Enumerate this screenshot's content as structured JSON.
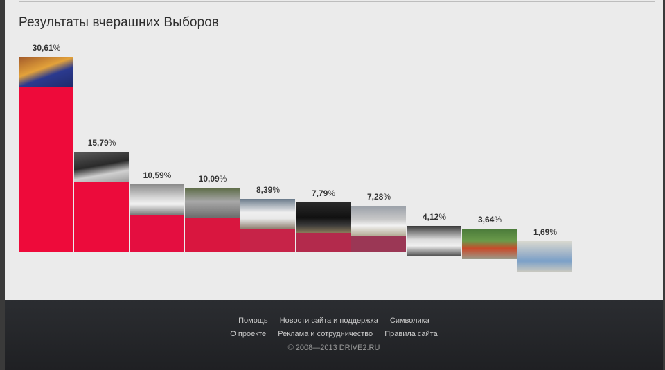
{
  "page": {
    "title": "Результаты вчерашних Выборов"
  },
  "chart_data": {
    "type": "bar",
    "title": "Результаты вчерашних Выборов",
    "categories": [
      "",
      "",
      "",
      "",
      "",
      "",
      "",
      "",
      "",
      ""
    ],
    "values": [
      30.61,
      15.79,
      10.59,
      10.09,
      8.39,
      7.79,
      7.28,
      4.12,
      3.64,
      1.69
    ],
    "labels": [
      "30,61",
      "15,79",
      "10,59",
      "10,09",
      "8,39",
      "7,79",
      "7,28",
      "4,12",
      "3,64",
      "1,69"
    ],
    "percent_sign": "%",
    "colors": [
      "#ee0a3a",
      "#ec0b3b",
      "#e40e40",
      "#d9163f",
      "#c72348",
      "#b32a4c",
      "#9b3755",
      "#864262",
      "#6f4a6a",
      "#5b5072"
    ],
    "thumbnails": [
      "car-photo-blue-sedan",
      "car-photo-black-sports",
      "car-photo-white-sedan",
      "car-photo-silver-minivan",
      "car-photo-white-crossover",
      "car-photo-black-suv",
      "car-photo-white-coupe",
      "car-photo-white-hatchback",
      "car-photo-red-hatchback",
      "car-photo-blue-hatchback"
    ],
    "ylim": [
      0,
      30.61
    ],
    "grid": false,
    "legend": "none"
  },
  "footer": {
    "links_row1": [
      "Помощь",
      "Новости сайта и поддержка",
      "Символика"
    ],
    "links_row2": [
      "О проекте",
      "Реклама и сотрудничество",
      "Правила сайта"
    ],
    "copyright": "© 2008—2013 DRIVE2.RU"
  }
}
